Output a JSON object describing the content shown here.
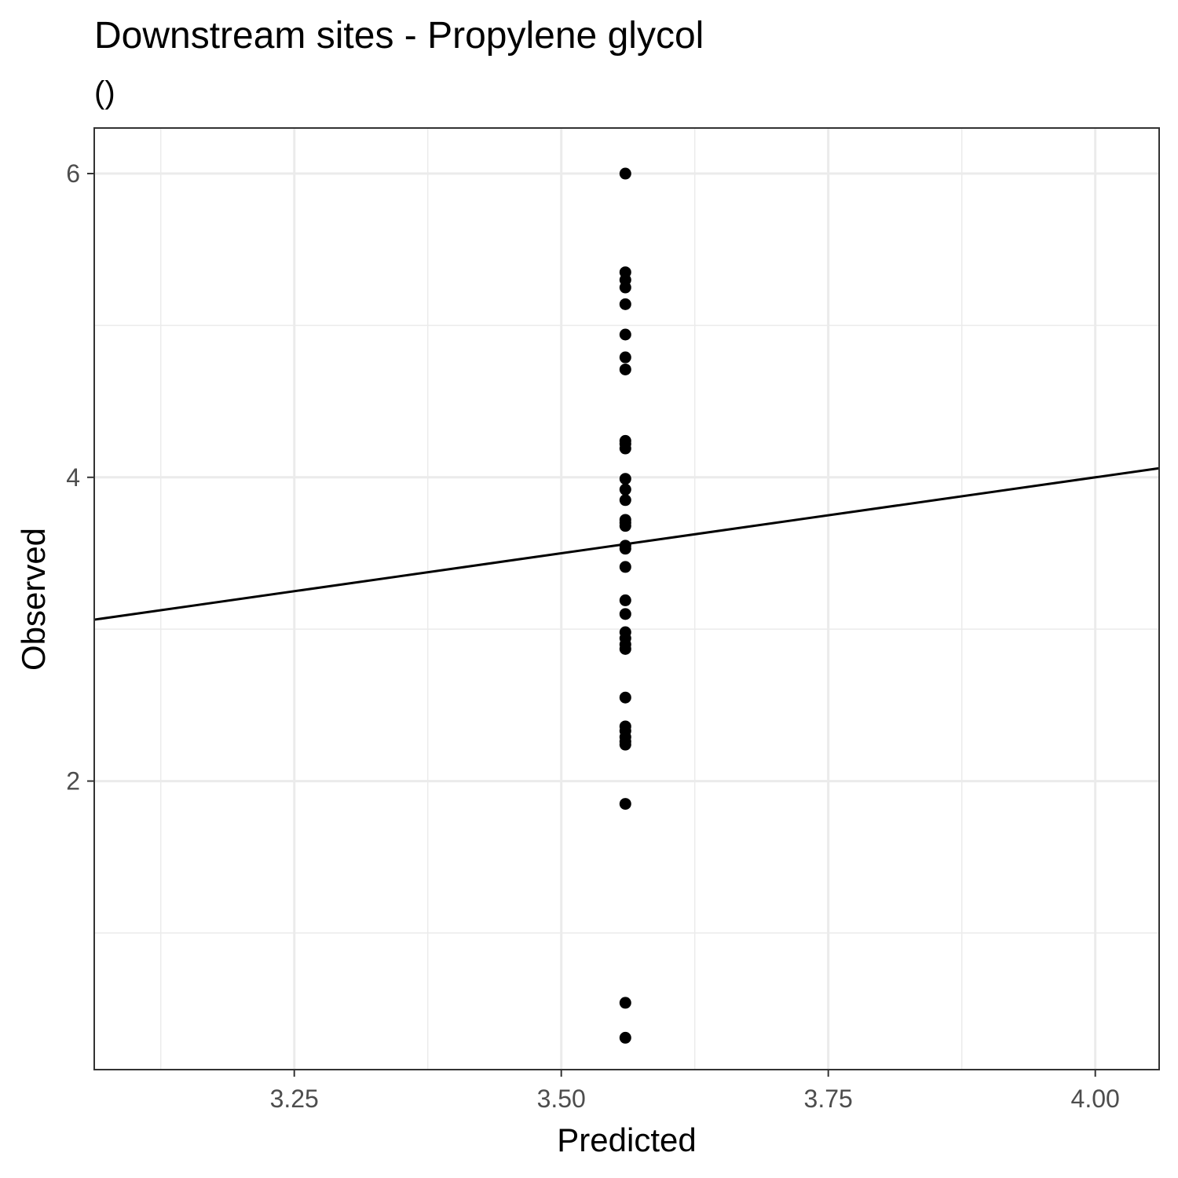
{
  "chart_data": {
    "type": "scatter",
    "title": "Downstream sites - Propylene glycol",
    "subtitle": "()",
    "xlabel": "Predicted",
    "ylabel": "Observed",
    "xlim": [
      3.0627,
      4.0598
    ],
    "ylim": [
      0.1,
      6.3
    ],
    "x_ticks": [
      3.25,
      3.5,
      3.75,
      4.0
    ],
    "x_tick_labels": [
      "3.25",
      "3.50",
      "3.75",
      "4.00"
    ],
    "y_ticks": [
      2,
      4,
      6
    ],
    "y_tick_labels": [
      "2",
      "4",
      "6"
    ],
    "grid": true,
    "reference_line": {
      "slope": 1,
      "intercept": 0
    },
    "points": [
      {
        "x": 3.56,
        "y": 6.0
      },
      {
        "x": 3.56,
        "y": 5.35
      },
      {
        "x": 3.56,
        "y": 5.3
      },
      {
        "x": 3.56,
        "y": 5.25
      },
      {
        "x": 3.56,
        "y": 5.14
      },
      {
        "x": 3.56,
        "y": 4.94
      },
      {
        "x": 3.56,
        "y": 4.79
      },
      {
        "x": 3.56,
        "y": 4.71
      },
      {
        "x": 3.56,
        "y": 4.24
      },
      {
        "x": 3.56,
        "y": 4.22
      },
      {
        "x": 3.56,
        "y": 4.19
      },
      {
        "x": 3.56,
        "y": 3.99
      },
      {
        "x": 3.56,
        "y": 3.92
      },
      {
        "x": 3.56,
        "y": 3.85
      },
      {
        "x": 3.56,
        "y": 3.72
      },
      {
        "x": 3.56,
        "y": 3.7
      },
      {
        "x": 3.56,
        "y": 3.68
      },
      {
        "x": 3.56,
        "y": 3.55
      },
      {
        "x": 3.56,
        "y": 3.53
      },
      {
        "x": 3.56,
        "y": 3.41
      },
      {
        "x": 3.56,
        "y": 3.19
      },
      {
        "x": 3.56,
        "y": 3.1
      },
      {
        "x": 3.56,
        "y": 2.98
      },
      {
        "x": 3.56,
        "y": 2.94
      },
      {
        "x": 3.56,
        "y": 2.9
      },
      {
        "x": 3.56,
        "y": 2.87
      },
      {
        "x": 3.56,
        "y": 2.55
      },
      {
        "x": 3.56,
        "y": 2.36
      },
      {
        "x": 3.56,
        "y": 2.33
      },
      {
        "x": 3.56,
        "y": 2.29
      },
      {
        "x": 3.56,
        "y": 2.26
      },
      {
        "x": 3.56,
        "y": 2.24
      },
      {
        "x": 3.56,
        "y": 1.85
      },
      {
        "x": 3.56,
        "y": 0.54
      },
      {
        "x": 3.56,
        "y": 0.31
      }
    ]
  }
}
